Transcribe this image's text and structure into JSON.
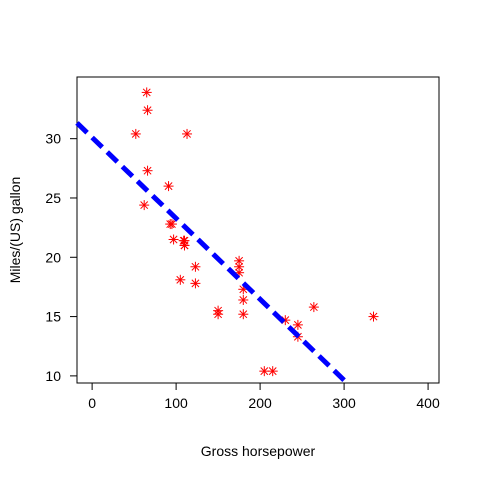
{
  "chart_data": {
    "type": "scatter",
    "title": "",
    "xlabel": "Gross horsepower",
    "ylabel": "Miles/(US) gallon",
    "xlim": [
      -18,
      413
    ],
    "ylim": [
      9.4,
      35.2
    ],
    "x_ticks": [
      0,
      100,
      200,
      300,
      400
    ],
    "y_ticks": [
      10,
      15,
      20,
      25,
      30
    ],
    "grid": false,
    "legend": "none",
    "series": [
      {
        "marker": "asterisk",
        "color": "#ff0000",
        "points": [
          {
            "x": 110,
            "y": 21.0
          },
          {
            "x": 110,
            "y": 21.0
          },
          {
            "x": 93,
            "y": 22.8
          },
          {
            "x": 110,
            "y": 21.4
          },
          {
            "x": 175,
            "y": 18.7
          },
          {
            "x": 105,
            "y": 18.1
          },
          {
            "x": 245,
            "y": 14.3
          },
          {
            "x": 62,
            "y": 24.4
          },
          {
            "x": 95,
            "y": 22.8
          },
          {
            "x": 123,
            "y": 19.2
          },
          {
            "x": 123,
            "y": 17.8
          },
          {
            "x": 180,
            "y": 16.4
          },
          {
            "x": 180,
            "y": 17.3
          },
          {
            "x": 180,
            "y": 15.2
          },
          {
            "x": 205,
            "y": 10.4
          },
          {
            "x": 215,
            "y": 10.4
          },
          {
            "x": 230,
            "y": 14.7
          },
          {
            "x": 66,
            "y": 32.4
          },
          {
            "x": 52,
            "y": 30.4
          },
          {
            "x": 65,
            "y": 33.9
          },
          {
            "x": 97,
            "y": 21.5
          },
          {
            "x": 150,
            "y": 15.5
          },
          {
            "x": 150,
            "y": 15.2
          },
          {
            "x": 245,
            "y": 13.3
          },
          {
            "x": 175,
            "y": 19.2
          },
          {
            "x": 66,
            "y": 27.3
          },
          {
            "x": 91,
            "y": 26.0
          },
          {
            "x": 113,
            "y": 30.4
          },
          {
            "x": 264,
            "y": 15.8
          },
          {
            "x": 175,
            "y": 19.7
          },
          {
            "x": 335,
            "y": 15.0
          },
          {
            "x": 109,
            "y": 21.4
          }
        ]
      }
    ],
    "fit_line": {
      "style": "dashed",
      "color": "#0000ff",
      "intercept": 30.1,
      "slope": -0.0682,
      "x_range": [
        -18,
        300
      ]
    }
  }
}
